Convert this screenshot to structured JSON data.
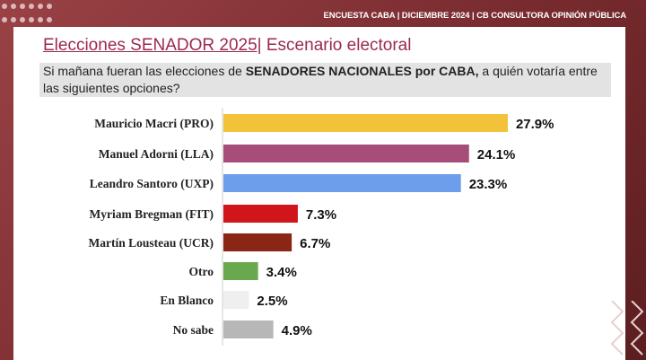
{
  "header": {
    "banner": "ENCUESTA CABA | DICIEMBRE 2024 | CB CONSULTORA OPINIÓN PÚBLICA"
  },
  "title": {
    "main": "Elecciones SENADOR 2025",
    "sep": "|",
    "sub": " Escenario electoral"
  },
  "question": {
    "pre": "Si mañana fueran las elecciones de ",
    "bold": "SENADORES NACIONALES por CABA,",
    "post": " a quién votaría entre las siguientes opciones?"
  },
  "chart_data": {
    "type": "bar",
    "orientation": "horizontal",
    "unit": "%",
    "categories": [
      "Mauricio Macri (PRO)",
      "Manuel Adorni (LLA)",
      "Leandro Santoro (UXP)",
      "Myriam Bregman (FIT)",
      "Martín Lousteau (UCR)",
      "Otro",
      "En Blanco",
      "No sabe"
    ],
    "values": [
      27.9,
      24.1,
      23.3,
      7.3,
      6.7,
      3.4,
      2.5,
      4.9
    ],
    "labels": [
      "27.9%",
      "24.1%",
      "23.3%",
      "7.3%",
      "6.7%",
      "3.4%",
      "2.5%",
      "4.9%"
    ],
    "colors": [
      "#f2c23a",
      "#a64d79",
      "#6d9eeb",
      "#d0161b",
      "#8b2515",
      "#6aa84f",
      "#efefef",
      "#b7b7b7"
    ],
    "grid": false
  }
}
